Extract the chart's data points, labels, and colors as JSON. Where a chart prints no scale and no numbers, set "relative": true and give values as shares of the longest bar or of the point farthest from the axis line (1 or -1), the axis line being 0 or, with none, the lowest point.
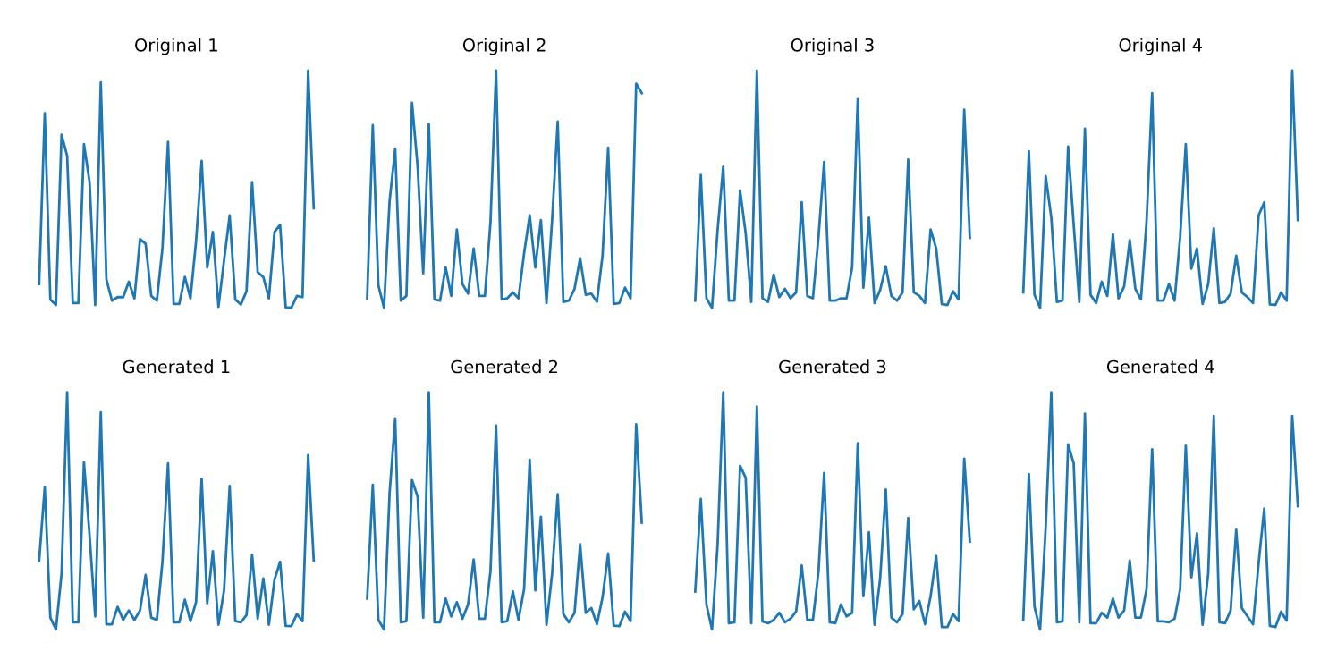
{
  "chart_data": [
    {
      "type": "line",
      "title": "Original 1",
      "relative": true,
      "color": "#1f77b4",
      "categories": [
        null,
        null,
        null,
        null,
        null,
        null,
        null,
        null,
        null,
        null,
        null,
        null,
        null,
        null,
        null,
        null,
        null,
        null,
        null,
        null,
        null,
        null,
        null,
        null,
        null,
        null,
        null,
        null,
        null,
        null,
        null,
        null,
        null,
        null,
        null,
        null,
        null,
        null,
        null,
        null,
        null,
        null,
        null,
        null,
        null,
        null,
        null,
        null,
        null,
        null
      ],
      "values": [
        0.1,
        0.82,
        0.035,
        0.012,
        0.73,
        0.64,
        0.02,
        0.02,
        0.69,
        0.53,
        0.012,
        0.95,
        0.12,
        0.03,
        0.045,
        0.045,
        0.11,
        0.04,
        0.29,
        0.27,
        0.05,
        0.03,
        0.25,
        0.7,
        0.016,
        0.016,
        0.13,
        0.04,
        0.28,
        0.62,
        0.17,
        0.32,
        0.004,
        0.2,
        0.39,
        0.035,
        0.014,
        0.07,
        0.53,
        0.15,
        0.13,
        0.04,
        0.32,
        0.35,
        0.002,
        0,
        0.05,
        0.045,
        1,
        0.42
      ]
    },
    {
      "type": "line",
      "title": "Original 2",
      "relative": true,
      "color": "#1f77b4",
      "categories": [
        null,
        null,
        null,
        null,
        null,
        null,
        null,
        null,
        null,
        null,
        null,
        null,
        null,
        null,
        null,
        null,
        null,
        null,
        null,
        null,
        null,
        null,
        null,
        null,
        null,
        null,
        null,
        null,
        null,
        null,
        null,
        null,
        null,
        null,
        null,
        null,
        null,
        null,
        null,
        null,
        null,
        null,
        null,
        null,
        null,
        null,
        null,
        null,
        null,
        null
      ],
      "values": [
        0.04,
        0.77,
        0.095,
        0,
        0.45,
        0.67,
        0.03,
        0.05,
        0.865,
        0.595,
        0.145,
        0.775,
        0.035,
        0.03,
        0.17,
        0.05,
        0.33,
        0.1,
        0.06,
        0.25,
        0.05,
        0.05,
        0.36,
        1,
        0.035,
        0.04,
        0.065,
        0.04,
        0.23,
        0.39,
        0.17,
        0.37,
        0.02,
        0.37,
        0.785,
        0.025,
        0.03,
        0.08,
        0.21,
        0.055,
        0.06,
        0.025,
        0.22,
        0.675,
        0.016,
        0.02,
        0.085,
        0.04,
        0.945,
        0.905
      ]
    },
    {
      "type": "line",
      "title": "Original 3",
      "relative": true,
      "color": "#1f77b4",
      "categories": [
        null,
        null,
        null,
        null,
        null,
        null,
        null,
        null,
        null,
        null,
        null,
        null,
        null,
        null,
        null,
        null,
        null,
        null,
        null,
        null,
        null,
        null,
        null,
        null,
        null,
        null,
        null,
        null,
        null,
        null,
        null,
        null,
        null,
        null,
        null,
        null,
        null,
        null,
        null,
        null,
        null,
        null,
        null,
        null,
        null,
        null,
        null,
        null,
        null,
        null
      ],
      "values": [
        0.03,
        0.56,
        0.04,
        0,
        0.33,
        0.595,
        0.03,
        0.03,
        0.495,
        0.315,
        0.025,
        1,
        0.04,
        0.025,
        0.14,
        0.045,
        0.08,
        0.04,
        0.065,
        0.445,
        0.05,
        0.04,
        0.3,
        0.615,
        0.03,
        0.03,
        0.04,
        0.04,
        0.17,
        0.88,
        0.085,
        0.38,
        0.02,
        0.075,
        0.175,
        0.05,
        0.03,
        0.065,
        0.625,
        0.065,
        0.05,
        0.02,
        0.33,
        0.25,
        0.015,
        0.012,
        0.07,
        0.035,
        0.835,
        0.295
      ]
    },
    {
      "type": "line",
      "title": "Original 4",
      "relative": true,
      "color": "#1f77b4",
      "categories": [
        null,
        null,
        null,
        null,
        null,
        null,
        null,
        null,
        null,
        null,
        null,
        null,
        null,
        null,
        null,
        null,
        null,
        null,
        null,
        null,
        null,
        null,
        null,
        null,
        null,
        null,
        null,
        null,
        null,
        null,
        null,
        null,
        null,
        null,
        null,
        null,
        null,
        null,
        null,
        null,
        null,
        null,
        null,
        null,
        null,
        null,
        null,
        null,
        null,
        null
      ],
      "values": [
        0.065,
        0.66,
        0.055,
        0,
        0.555,
        0.38,
        0.025,
        0.03,
        0.68,
        0.35,
        0.025,
        0.755,
        0.055,
        0.02,
        0.11,
        0.05,
        0.31,
        0.04,
        0.09,
        0.285,
        0.08,
        0.035,
        0.365,
        0.905,
        0.03,
        0.03,
        0.1,
        0.03,
        0.3,
        0.69,
        0.165,
        0.25,
        0.016,
        0.1,
        0.335,
        0.02,
        0.025,
        0.06,
        0.22,
        0.065,
        0.045,
        0.02,
        0.39,
        0.445,
        0.014,
        0.012,
        0.065,
        0.03,
        1,
        0.37
      ]
    },
    {
      "type": "line",
      "title": "Generated 1",
      "relative": true,
      "color": "#1f77b4",
      "categories": [
        null,
        null,
        null,
        null,
        null,
        null,
        null,
        null,
        null,
        null,
        null,
        null,
        null,
        null,
        null,
        null,
        null,
        null,
        null,
        null,
        null,
        null,
        null,
        null,
        null,
        null,
        null,
        null,
        null,
        null,
        null,
        null,
        null,
        null,
        null,
        null,
        null,
        null,
        null,
        null,
        null,
        null,
        null,
        null,
        null,
        null,
        null,
        null,
        null,
        null
      ],
      "values": [
        0.29,
        0.6,
        0.05,
        0,
        0.235,
        1,
        0.03,
        0.03,
        0.705,
        0.395,
        0.055,
        0.915,
        0.022,
        0.022,
        0.095,
        0.04,
        0.08,
        0.04,
        0.08,
        0.23,
        0.05,
        0.04,
        0.285,
        0.7,
        0.03,
        0.03,
        0.125,
        0.035,
        0.115,
        0.635,
        0.11,
        0.33,
        0.02,
        0.165,
        0.605,
        0.035,
        0.03,
        0.06,
        0.315,
        0.045,
        0.215,
        0.02,
        0.21,
        0.285,
        0.015,
        0.014,
        0.065,
        0.035,
        0.735,
        0.29
      ]
    },
    {
      "type": "line",
      "title": "Generated 2",
      "relative": true,
      "color": "#1f77b4",
      "categories": [
        null,
        null,
        null,
        null,
        null,
        null,
        null,
        null,
        null,
        null,
        null,
        null,
        null,
        null,
        null,
        null,
        null,
        null,
        null,
        null,
        null,
        null,
        null,
        null,
        null,
        null,
        null,
        null,
        null,
        null,
        null,
        null,
        null,
        null,
        null,
        null,
        null,
        null,
        null,
        null,
        null,
        null,
        null,
        null,
        null,
        null,
        null,
        null,
        null,
        null
      ],
      "values": [
        0.13,
        0.61,
        0.04,
        0,
        0.575,
        0.89,
        0.03,
        0.035,
        0.63,
        0.56,
        0.05,
        1,
        0.03,
        0.03,
        0.13,
        0.055,
        0.115,
        0.045,
        0.105,
        0.295,
        0.045,
        0.045,
        0.245,
        0.86,
        0.03,
        0.035,
        0.16,
        0.04,
        0.17,
        0.715,
        0.165,
        0.475,
        0.02,
        0.235,
        0.57,
        0.065,
        0.03,
        0.07,
        0.36,
        0.07,
        0.09,
        0.022,
        0.135,
        0.32,
        0.016,
        0.014,
        0.075,
        0.035,
        0.865,
        0.45
      ]
    },
    {
      "type": "line",
      "title": "Generated 3",
      "relative": true,
      "color": "#1f77b4",
      "categories": [
        null,
        null,
        null,
        null,
        null,
        null,
        null,
        null,
        null,
        null,
        null,
        null,
        null,
        null,
        null,
        null,
        null,
        null,
        null,
        null,
        null,
        null,
        null,
        null,
        null,
        null,
        null,
        null,
        null,
        null,
        null,
        null,
        null,
        null,
        null,
        null,
        null,
        null,
        null,
        null,
        null,
        null,
        null,
        null,
        null,
        null,
        null,
        null,
        null,
        null
      ],
      "values": [
        0.16,
        0.55,
        0.105,
        0,
        0.36,
        1,
        0.026,
        0.03,
        0.69,
        0.64,
        0.026,
        0.94,
        0.034,
        0.026,
        0.04,
        0.07,
        0.03,
        0.045,
        0.075,
        0.27,
        0.04,
        0.04,
        0.245,
        0.66,
        0.03,
        0.026,
        0.105,
        0.055,
        0.07,
        0.785,
        0.14,
        0.41,
        0.02,
        0.215,
        0.59,
        0.05,
        0.03,
        0.065,
        0.47,
        0.085,
        0.12,
        0.022,
        0.14,
        0.31,
        0.01,
        0.01,
        0.065,
        0.035,
        0.72,
        0.37
      ]
    },
    {
      "type": "line",
      "title": "Generated 4",
      "relative": true,
      "color": "#1f77b4",
      "categories": [
        null,
        null,
        null,
        null,
        null,
        null,
        null,
        null,
        null,
        null,
        null,
        null,
        null,
        null,
        null,
        null,
        null,
        null,
        null,
        null,
        null,
        null,
        null,
        null,
        null,
        null,
        null,
        null,
        null,
        null,
        null,
        null,
        null,
        null,
        null,
        null,
        null,
        null,
        null,
        null,
        null,
        null,
        null,
        null,
        null,
        null,
        null,
        null,
        null,
        null
      ],
      "values": [
        0.04,
        0.655,
        0.095,
        0,
        0.43,
        1,
        0.03,
        0.034,
        0.78,
        0.7,
        0.03,
        0.91,
        0.026,
        0.026,
        0.07,
        0.05,
        0.13,
        0.05,
        0.08,
        0.29,
        0.05,
        0.05,
        0.17,
        0.76,
        0.034,
        0.034,
        0.03,
        0.045,
        0.17,
        0.775,
        0.22,
        0.405,
        0.02,
        0.235,
        0.9,
        0.03,
        0.026,
        0.08,
        0.42,
        0.09,
        0.055,
        0.022,
        0.28,
        0.51,
        0.015,
        0.01,
        0.075,
        0.037,
        0.9,
        0.52
      ]
    }
  ]
}
